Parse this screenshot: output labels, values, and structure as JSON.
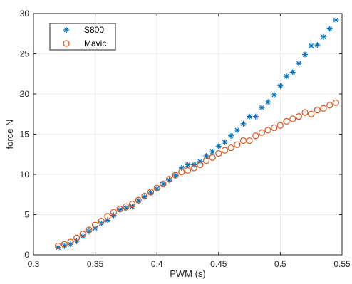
{
  "chart_data": {
    "type": "scatter",
    "xlabel": "PWM (s)",
    "ylabel": "force N",
    "xlim": [
      0.3,
      0.55
    ],
    "ylim": [
      0,
      30
    ],
    "xticks": [
      0.3,
      0.35,
      0.4,
      0.45,
      0.5,
      0.55
    ],
    "xtick_labels": [
      "0.3",
      "0.35",
      "0.4",
      "0.45",
      "0.5",
      "0.55"
    ],
    "yticks": [
      0,
      5,
      10,
      15,
      20,
      25,
      30
    ],
    "ytick_labels": [
      "0",
      "5",
      "10",
      "15",
      "20",
      "25",
      "30"
    ],
    "grid": true,
    "legend_position": "top-left",
    "series": [
      {
        "name": "S800",
        "marker": "asterisk",
        "color": "#0072BD",
        "x": [
          0.32,
          0.325,
          0.33,
          0.335,
          0.34,
          0.345,
          0.35,
          0.355,
          0.36,
          0.365,
          0.37,
          0.375,
          0.38,
          0.385,
          0.39,
          0.395,
          0.4,
          0.405,
          0.41,
          0.415,
          0.42,
          0.425,
          0.43,
          0.435,
          0.44,
          0.445,
          0.45,
          0.455,
          0.46,
          0.465,
          0.47,
          0.475,
          0.48,
          0.485,
          0.49,
          0.495,
          0.5,
          0.505,
          0.51,
          0.515,
          0.52,
          0.525,
          0.53,
          0.535,
          0.54,
          0.545
        ],
        "y": [
          0.9,
          1.1,
          1.3,
          1.7,
          2.3,
          2.9,
          3.3,
          3.9,
          4.3,
          4.9,
          5.6,
          5.8,
          6.0,
          6.7,
          7.2,
          7.7,
          8.2,
          8.8,
          9.3,
          9.9,
          10.8,
          11.2,
          11.2,
          11.6,
          12.3,
          12.8,
          13.5,
          14.0,
          14.8,
          15.5,
          16.3,
          17.2,
          17.2,
          18.3,
          19.0,
          19.9,
          21.0,
          22.2,
          22.7,
          23.8,
          24.9,
          26.0,
          26.1,
          27.1,
          28.1,
          29.2
        ]
      },
      {
        "name": "Mavic",
        "marker": "circle",
        "color": "#D95319",
        "x": [
          0.32,
          0.325,
          0.33,
          0.335,
          0.34,
          0.345,
          0.35,
          0.355,
          0.36,
          0.365,
          0.37,
          0.375,
          0.38,
          0.385,
          0.39,
          0.395,
          0.4,
          0.405,
          0.41,
          0.415,
          0.42,
          0.425,
          0.43,
          0.435,
          0.44,
          0.445,
          0.45,
          0.455,
          0.46,
          0.465,
          0.47,
          0.475,
          0.48,
          0.485,
          0.49,
          0.495,
          0.5,
          0.505,
          0.51,
          0.515,
          0.52,
          0.525,
          0.53,
          0.535,
          0.54,
          0.545
        ],
        "y": [
          1.1,
          1.3,
          1.6,
          2.1,
          2.6,
          3.1,
          3.7,
          4.2,
          4.8,
          5.3,
          5.7,
          6.0,
          6.3,
          6.8,
          7.3,
          7.8,
          8.3,
          8.8,
          9.4,
          9.9,
          10.3,
          10.5,
          10.8,
          11.2,
          11.7,
          12.1,
          12.6,
          13.0,
          13.3,
          13.7,
          14.2,
          14.2,
          14.8,
          15.2,
          15.5,
          15.8,
          16.1,
          16.6,
          16.9,
          17.2,
          17.7,
          17.5,
          18.0,
          18.2,
          18.6,
          18.9
        ]
      }
    ]
  },
  "colors": {
    "background": "#ffffff",
    "grid": "#ebebeb",
    "axis": "#262626"
  }
}
